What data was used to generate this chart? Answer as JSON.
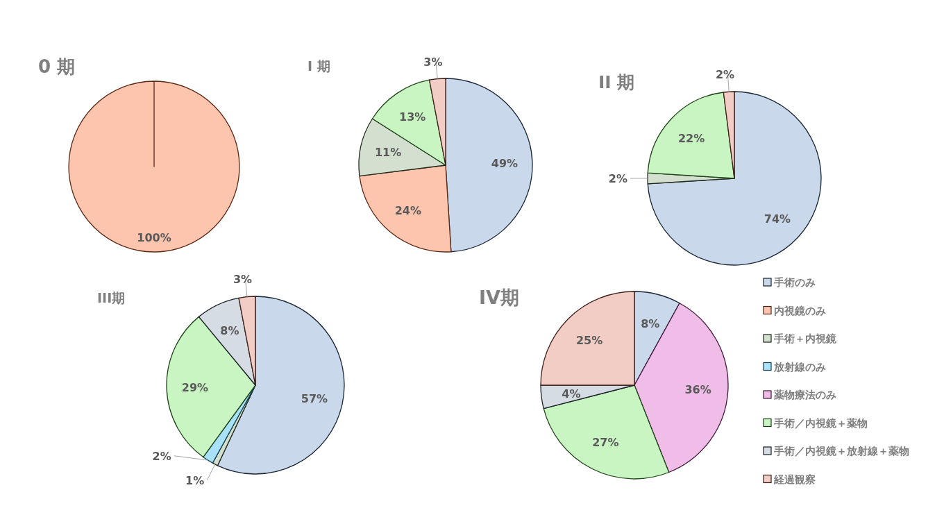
{
  "chart_data": [
    {
      "type": "pie",
      "title": "0 期",
      "categories": [
        null
      ],
      "values": [
        100
      ],
      "value_labels": [
        "100%"
      ],
      "colors": [
        "#fdc4ae"
      ]
    },
    {
      "type": "pie",
      "title": "I 期",
      "categories": [
        null,
        null,
        null,
        null,
        null
      ],
      "values": [
        49,
        24,
        11,
        13,
        3
      ],
      "value_labels": [
        "49%",
        "24%",
        "11%",
        "13%",
        "3%"
      ],
      "colors": [
        "#c9d8ea",
        "#fdc4ae",
        "#d3e0cf",
        "#c9f5c2",
        "#f2cdc5"
      ]
    },
    {
      "type": "pie",
      "title": "II 期",
      "categories": [
        null,
        null,
        null,
        null
      ],
      "values": [
        74,
        2,
        22,
        2
      ],
      "value_labels": [
        "74%",
        "2%",
        "22%",
        "2%"
      ],
      "colors": [
        "#c9d8ea",
        "#d3e0cf",
        "#c9f5c2",
        "#f2cdc5"
      ]
    },
    {
      "type": "pie",
      "title": "III期",
      "categories": [
        null,
        null,
        null,
        null,
        null,
        null
      ],
      "values": [
        57,
        1,
        2,
        29,
        8,
        3
      ],
      "value_labels": [
        "57%",
        "1%",
        "2%",
        "29%",
        "8%",
        "3%"
      ],
      "colors": [
        "#c9d8ea",
        "#d3e0cf",
        "#a9e2f8",
        "#c9f5c2",
        "#d6dce4",
        "#f2cdc5"
      ]
    },
    {
      "type": "pie",
      "title": "IV期",
      "categories": [
        null,
        null,
        null,
        null,
        null
      ],
      "values": [
        8,
        36,
        27,
        4,
        25
      ],
      "value_labels": [
        "8%",
        "36%",
        "27%",
        "4%",
        "25%"
      ],
      "colors": [
        "#c9d8ea",
        "#efbde7",
        "#c9f5c2",
        "#d6dce4",
        "#f2cdc5"
      ]
    },
    {
      "type": "other",
      "categories": [
        "手術のみ",
        "内視鏡のみ",
        "手術＋内視鏡",
        "放射線のみ",
        "薬物療法のみ",
        "手術／内視鏡＋薬物",
        "手術／内視鏡＋放射線＋薬物",
        "経過観察"
      ],
      "colors": [
        "#c9d8ea",
        "#fdc4ae",
        "#d3e0cf",
        "#a9e2f8",
        "#efbde7",
        "#c9f5c2",
        "#d6dce4",
        "#f2cdc5"
      ]
    }
  ]
}
